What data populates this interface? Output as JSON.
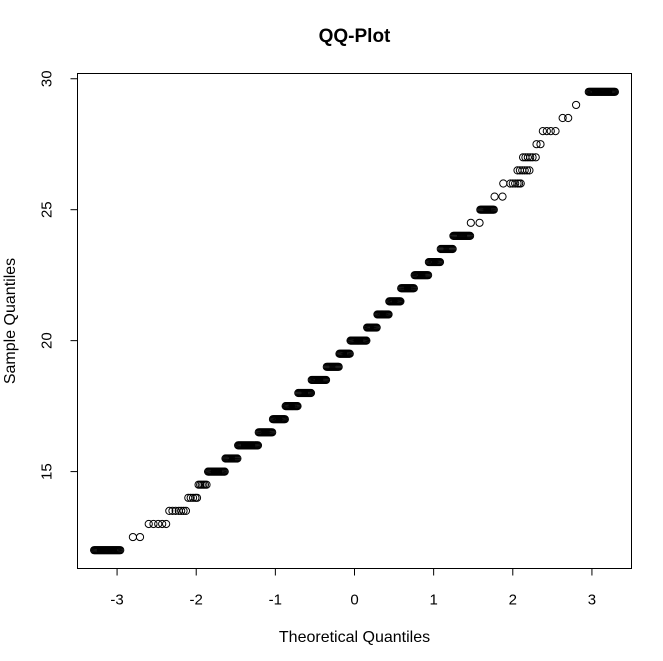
{
  "chart_data": {
    "type": "scatter",
    "title": "QQ-Plot",
    "xlabel": "Theoretical Quantiles",
    "ylabel": "Sample Quantiles",
    "xlim": [
      -3.5,
      3.5
    ],
    "ylim": [
      11.3,
      30.2
    ],
    "xticks": [
      "-3",
      "-2",
      "-1",
      "0",
      "1",
      "2",
      "3"
    ],
    "yticks": [
      "15",
      "20",
      "25",
      "30"
    ],
    "grid": false,
    "legend": "none",
    "marker_color": "#000000",
    "points_quantized": [
      {
        "y": 12.0,
        "x": [
          -3.29,
          -2.96
        ]
      },
      {
        "y": 12.5,
        "x": [
          -2.8,
          -2.71
        ]
      },
      {
        "y": 13.0,
        "x": [
          -2.6,
          -2.54,
          -2.48,
          -2.43,
          -2.38
        ]
      },
      {
        "y": 13.5,
        "x": [
          -2.34,
          -2.3,
          -2.26,
          -2.22,
          -2.19,
          -2.16,
          -2.13
        ]
      },
      {
        "y": 14.0,
        "x": [
          -2.1,
          -2.07,
          -2.04,
          -2.01,
          -1.99
        ]
      },
      {
        "y": 14.5,
        "x": [
          -1.97,
          -1.95,
          -1.93,
          -1.91,
          -1.89,
          -1.87
        ]
      },
      {
        "y": 15.0,
        "x": [
          -1.85,
          -1.64
        ]
      },
      {
        "y": 15.5,
        "x": [
          -1.63,
          -1.48
        ]
      },
      {
        "y": 16.0,
        "x": [
          -1.47,
          -1.22
        ]
      },
      {
        "y": 16.5,
        "x": [
          -1.21,
          -1.04
        ]
      },
      {
        "y": 17.0,
        "x": [
          -1.03,
          -0.88
        ]
      },
      {
        "y": 17.5,
        "x": [
          -0.87,
          -0.72
        ]
      },
      {
        "y": 18.0,
        "x": [
          -0.71,
          -0.55
        ]
      },
      {
        "y": 18.5,
        "x": [
          -0.54,
          -0.36
        ]
      },
      {
        "y": 19.0,
        "x": [
          -0.35,
          -0.2
        ]
      },
      {
        "y": 19.5,
        "x": [
          -0.19,
          -0.06
        ]
      },
      {
        "y": 20.0,
        "x": [
          -0.05,
          0.15
        ]
      },
      {
        "y": 20.5,
        "x": [
          0.16,
          0.28
        ]
      },
      {
        "y": 21.0,
        "x": [
          0.29,
          0.43
        ]
      },
      {
        "y": 21.5,
        "x": [
          0.44,
          0.58
        ]
      },
      {
        "y": 22.0,
        "x": [
          0.59,
          0.75
        ]
      },
      {
        "y": 22.5,
        "x": [
          0.76,
          0.93
        ]
      },
      {
        "y": 23.0,
        "x": [
          0.94,
          1.08
        ]
      },
      {
        "y": 23.5,
        "x": [
          1.09,
          1.24
        ]
      },
      {
        "y": 24.0,
        "x": [
          1.25,
          1.46
        ]
      },
      {
        "y": 24.5,
        "x": [
          1.47,
          1.58
        ]
      },
      {
        "y": 25.0,
        "x": [
          1.59,
          1.76
        ]
      },
      {
        "y": 25.5,
        "x": [
          1.77,
          1.87
        ]
      },
      {
        "y": 26.0,
        "x": [
          1.88,
          1.97,
          2.0,
          2.03,
          2.06,
          2.08,
          2.1
        ]
      },
      {
        "y": 26.5,
        "x": [
          2.06,
          2.09,
          2.12,
          2.15,
          2.18,
          2.21
        ]
      },
      {
        "y": 27.0,
        "x": [
          2.13,
          2.16,
          2.19,
          2.22,
          2.25,
          2.29
        ]
      },
      {
        "y": 27.5,
        "x": [
          2.3,
          2.35
        ]
      },
      {
        "y": 28.0,
        "x": [
          2.38,
          2.43,
          2.48,
          2.54
        ]
      },
      {
        "y": 28.5,
        "x": [
          2.63,
          2.7
        ]
      },
      {
        "y": 29.0,
        "x": [
          2.8
        ]
      },
      {
        "y": 29.5,
        "x": [
          2.96,
          3.29
        ]
      }
    ]
  }
}
